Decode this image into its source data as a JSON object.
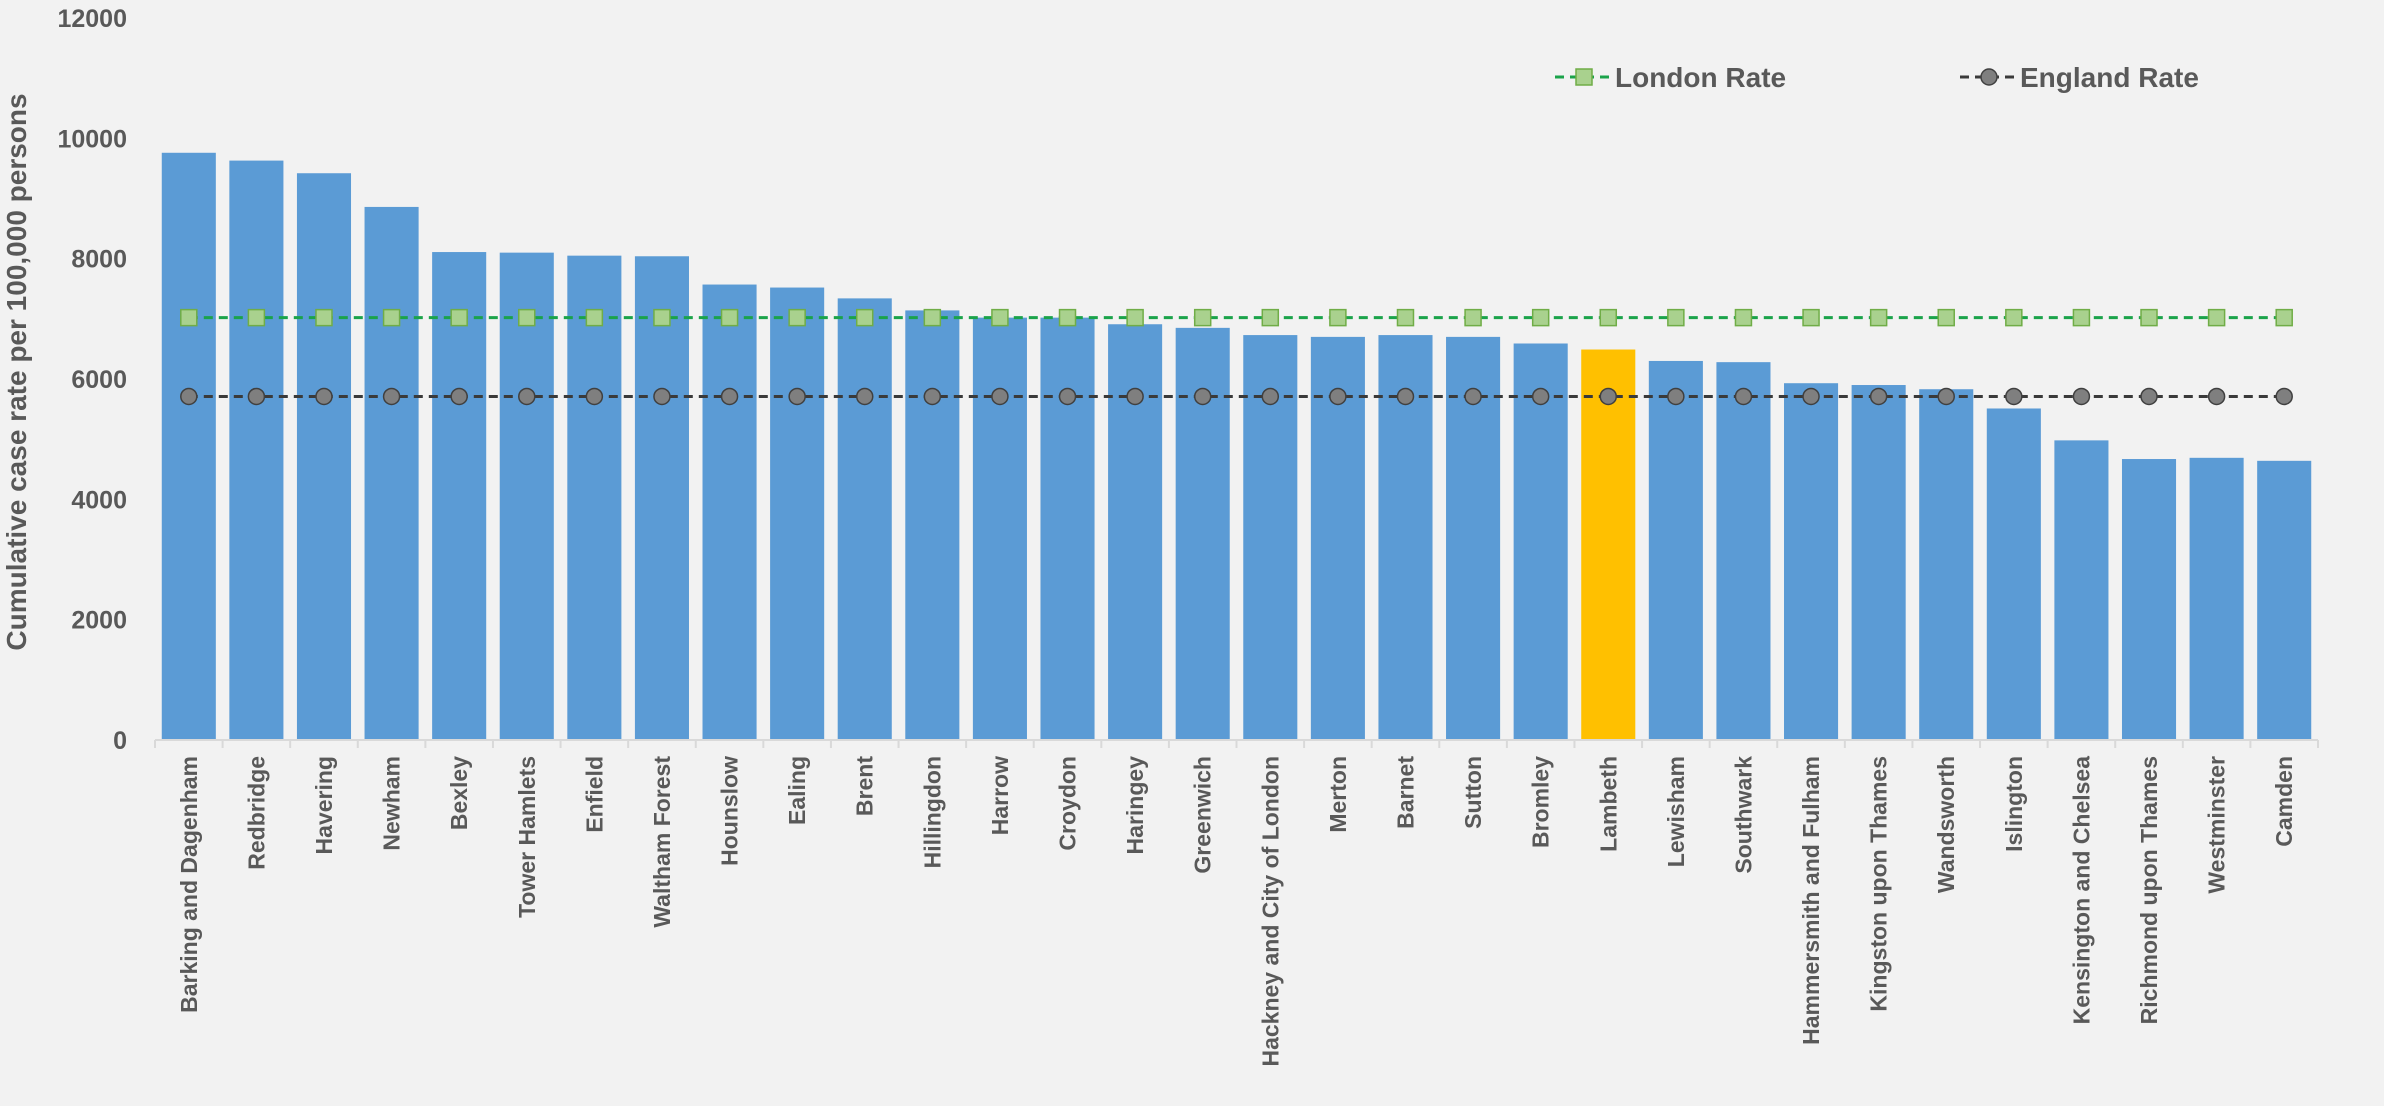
{
  "chart_data": {
    "type": "bar",
    "title": "",
    "xlabel": "",
    "ylabel": "Cumulative case rate per 100,000 persons",
    "ylim": [
      0,
      12000
    ],
    "yticks": [
      0,
      2000,
      4000,
      6000,
      8000,
      10000,
      12000
    ],
    "grid": false,
    "legend_position": "top-right",
    "categories": [
      "Barking and Dagenham",
      "Redbridge",
      "Havering",
      "Newham",
      "Bexley",
      "Tower Hamlets",
      "Enfield",
      "Waltham Forest",
      "Hounslow",
      "Ealing",
      "Brent",
      "Hillingdon",
      "Harrow",
      "Croydon",
      "Haringey",
      "Greenwich",
      "Hackney and City of London",
      "Merton",
      "Barnet",
      "Sutton",
      "Bromley",
      "Lambeth",
      "Lewisham",
      "Southwark",
      "Hammersmith and Fulham",
      "Kingston upon Thames",
      "Wandsworth",
      "Islington",
      "Kensington and Chelsea",
      "Richmond upon Thames",
      "Westminster",
      "Camden"
    ],
    "values": [
      9760,
      9630,
      9420,
      8860,
      8110,
      8100,
      8050,
      8040,
      7570,
      7520,
      7340,
      7140,
      7020,
      7020,
      6910,
      6850,
      6730,
      6700,
      6730,
      6700,
      6590,
      6490,
      6300,
      6280,
      5930,
      5900,
      5830,
      5510,
      4980,
      4670,
      4690,
      4640
    ],
    "highlight_category": "Lambeth",
    "series": [
      {
        "name": "London Rate",
        "type": "line",
        "value": 7020,
        "color": "#1aa34a",
        "marker": "square",
        "marker_fill": "#a9d18e"
      },
      {
        "name": "England Rate",
        "type": "line",
        "value": 5710,
        "color": "#3a3a3a",
        "marker": "circle",
        "marker_fill": "#7f7f7f"
      }
    ],
    "colors": {
      "bar": "#5b9bd5",
      "highlight": "#ffc000",
      "text": "#595959",
      "axis": "#d9d9d9"
    }
  }
}
